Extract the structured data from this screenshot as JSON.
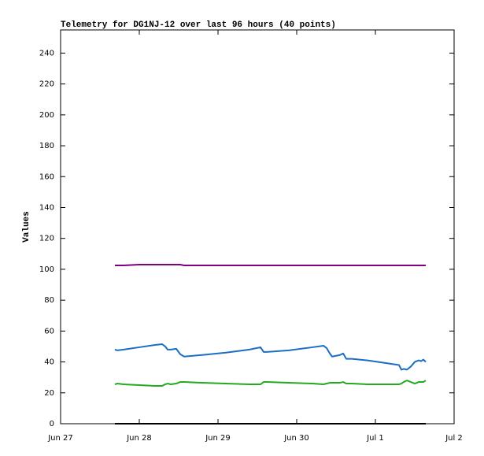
{
  "chart_data": {
    "type": "line",
    "title": "Telemetry for DG1NJ-12 over last 96 hours (40 points)",
    "y_label": "Values",
    "x": [
      0.69,
      0.72,
      0.8,
      1.0,
      1.2,
      1.29,
      1.33,
      1.36,
      1.4,
      1.47,
      1.52,
      1.57,
      1.8,
      2.1,
      2.4,
      2.54,
      2.58,
      2.62,
      2.9,
      3.2,
      3.34,
      3.38,
      3.42,
      3.45,
      3.55,
      3.59,
      3.63,
      3.7,
      3.9,
      4.1,
      4.3,
      4.33,
      4.36,
      4.4,
      4.45,
      4.5,
      4.55,
      4.58,
      4.61,
      4.64
    ],
    "series": [
      {
        "color": "#800080",
        "values": [
          102.5,
          102.5,
          102.5,
          103,
          103,
          103,
          103,
          103,
          103,
          103,
          103,
          102.5,
          102.5,
          102.5,
          102.5,
          102.5,
          102.5,
          102.5,
          102.5,
          102.5,
          102.5,
          102.5,
          102.5,
          102.5,
          102.5,
          102.5,
          102.5,
          102.5,
          102.5,
          102.5,
          102.5,
          102.5,
          102.5,
          102.5,
          102.5,
          102.5,
          102.5,
          102.5,
          102.5,
          102.5
        ]
      },
      {
        "color": "#1a6fc4",
        "values": [
          48,
          47.5,
          48,
          49.5,
          51,
          51.5,
          50,
          48,
          48,
          48.5,
          45,
          43.5,
          44.5,
          46,
          48,
          49.5,
          46.5,
          46.5,
          47.5,
          49.5,
          50.5,
          49,
          45.5,
          43.5,
          44.5,
          45.5,
          42,
          42,
          41,
          39.5,
          38,
          35,
          35.5,
          35,
          37,
          40,
          41,
          40.5,
          41.5,
          40
        ]
      },
      {
        "color": "#22aa22",
        "values": [
          25.5,
          26,
          25.5,
          25,
          24.5,
          24.5,
          25.5,
          26,
          25.5,
          26,
          27,
          27,
          26.5,
          26,
          25.5,
          25.5,
          27,
          27,
          26.5,
          26,
          25.5,
          26,
          26.5,
          26.5,
          26.5,
          27,
          26,
          26,
          25.5,
          25.5,
          25.5,
          26,
          27,
          28,
          27,
          26,
          27,
          27,
          27,
          28
        ]
      },
      {
        "color": "#000000",
        "values": [
          0,
          0,
          0,
          0,
          0,
          0,
          0,
          0,
          0,
          0,
          0,
          0,
          0,
          0,
          0,
          0,
          0,
          0,
          0,
          0,
          0,
          0,
          0,
          0,
          0,
          0,
          0,
          0,
          0,
          0,
          0,
          0,
          0,
          0,
          0,
          0,
          0,
          0,
          0,
          0
        ]
      }
    ],
    "xlim": [
      0,
      5
    ],
    "xticks": [
      {
        "value": 0,
        "label": "Jun 27"
      },
      {
        "value": 1,
        "label": "Jun 28"
      },
      {
        "value": 2,
        "label": "Jun 29"
      },
      {
        "value": 3,
        "label": "Jun 30"
      },
      {
        "value": 4,
        "label": "Jul 1"
      },
      {
        "value": 5,
        "label": "Jul 2"
      }
    ],
    "ylim": [
      0,
      255
    ],
    "yticks": [
      0,
      20,
      40,
      60,
      80,
      100,
      120,
      140,
      160,
      180,
      200,
      220,
      240
    ]
  }
}
